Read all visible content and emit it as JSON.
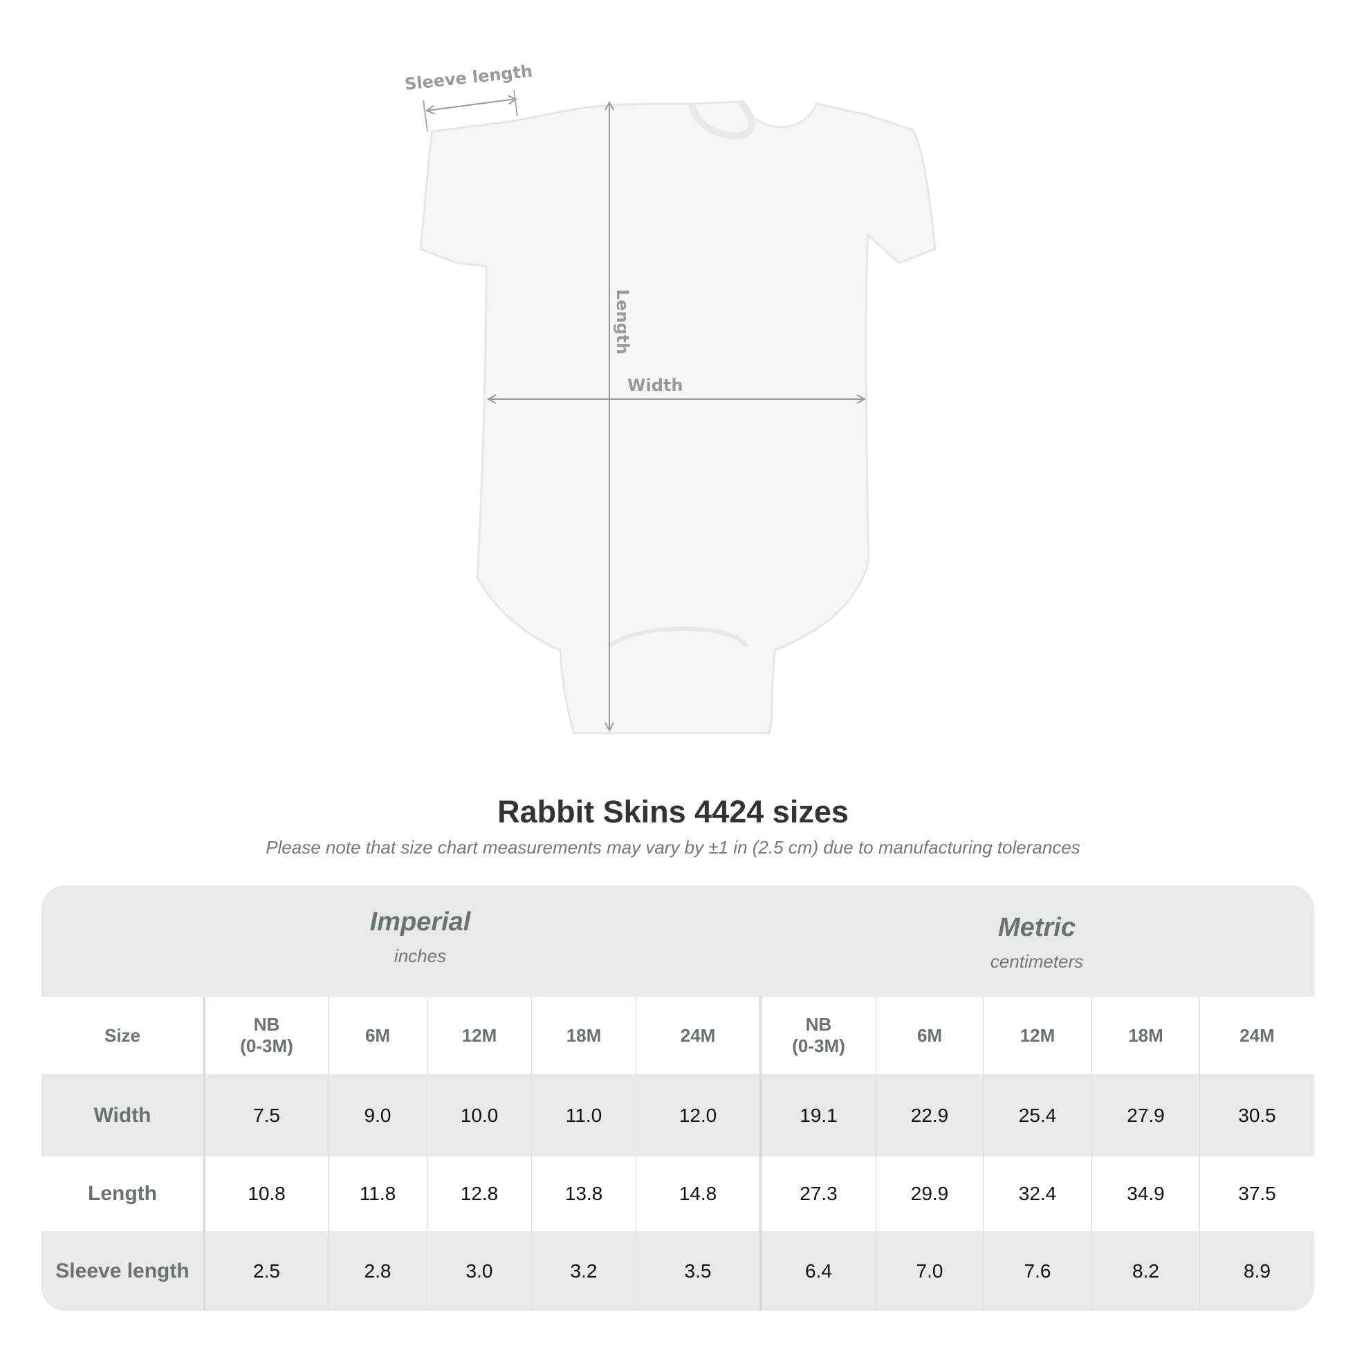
{
  "illustration": {
    "labels": {
      "sleeve": "Sleeve length",
      "length": "Length",
      "width": "Width"
    },
    "garment_color": "#f6f6f6",
    "measure_line_color": "#999999"
  },
  "title": "Rabbit Skins 4424 sizes",
  "note": "Please note that size chart measurements may vary by ±1 in (2.5 cm) due to manufacturing tolerances",
  "table": {
    "groups": [
      {
        "name": "Imperial",
        "unit": "inches"
      },
      {
        "name": "Metric",
        "unit": "centimeters"
      }
    ],
    "size_label": "Size",
    "sizes": [
      "NB\n(0-3M)",
      "6M",
      "12M",
      "18M",
      "24M",
      "NB\n(0-3M)",
      "6M",
      "12M",
      "18M",
      "24M"
    ],
    "rows": [
      {
        "label": "Width",
        "values": [
          "7.5",
          "9.0",
          "10.0",
          "11.0",
          "12.0",
          "19.1",
          "22.9",
          "25.4",
          "27.9",
          "30.5"
        ]
      },
      {
        "label": "Length",
        "values": [
          "10.8",
          "11.8",
          "12.8",
          "13.8",
          "14.8",
          "27.3",
          "29.9",
          "32.4",
          "34.9",
          "37.5"
        ]
      },
      {
        "label": "Sleeve length",
        "values": [
          "2.5",
          "2.8",
          "3.0",
          "3.2",
          "3.5",
          "6.4",
          "7.0",
          "7.6",
          "8.2",
          "8.9"
        ]
      }
    ]
  }
}
